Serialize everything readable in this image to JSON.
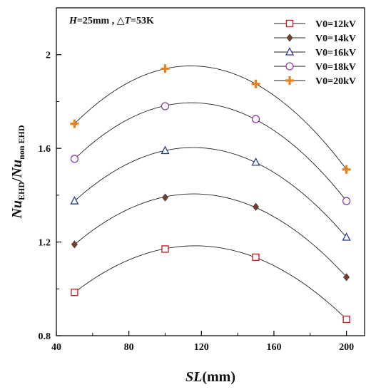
{
  "chart_data": {
    "type": "scatter",
    "title": "",
    "annotation": "H=25mm , △T=53K",
    "xlabel": "SL(mm)",
    "ylabel": "Nu_EHD/Nu_non EHD",
    "xlim": [
      40,
      210
    ],
    "ylim": [
      0.8,
      2.2
    ],
    "xticks": [
      40,
      80,
      120,
      160,
      200
    ],
    "yticks": [
      0.8,
      1.2,
      1.6,
      2.0
    ],
    "xtick_labels": [
      "40",
      "80",
      "120",
      "160",
      "200"
    ],
    "ytick_labels": [
      "0.8",
      "1.2",
      "1.6",
      "2"
    ],
    "x": [
      50,
      100,
      150,
      200
    ],
    "fit": "quadratic trend curve through each series",
    "legend_position": "top-right",
    "grid": false,
    "series": [
      {
        "name": "V0=12kV",
        "marker": "square",
        "color": "#c0282d",
        "values": [
          0.985,
          1.17,
          1.135,
          0.87
        ]
      },
      {
        "name": "V0=14kV",
        "marker": "diamond",
        "color": "#7a3b2e",
        "values": [
          1.19,
          1.39,
          1.35,
          1.05
        ]
      },
      {
        "name": "V0=16kV",
        "marker": "triangle",
        "color": "#2b3a8f",
        "values": [
          1.375,
          1.59,
          1.54,
          1.22
        ]
      },
      {
        "name": "V0=18kV",
        "marker": "circle",
        "color": "#8a3f9e",
        "values": [
          1.555,
          1.78,
          1.725,
          1.375
        ]
      },
      {
        "name": "V0=20kV",
        "marker": "plus",
        "color": "#e8821e",
        "values": [
          1.705,
          1.94,
          1.875,
          1.51
        ]
      }
    ]
  }
}
